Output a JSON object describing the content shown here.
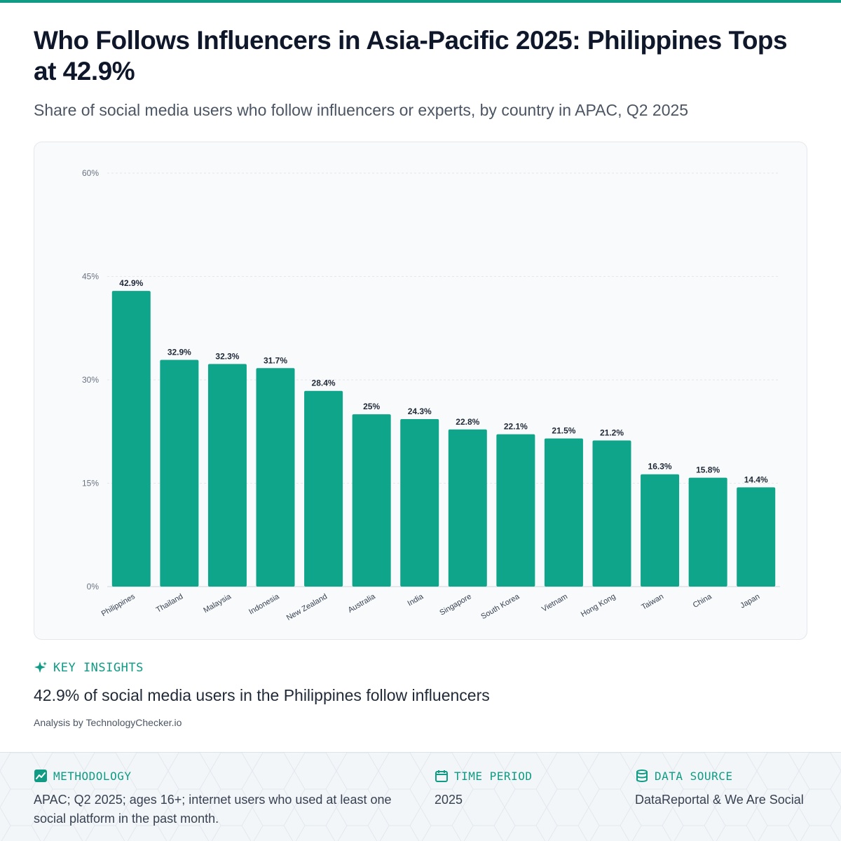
{
  "header": {
    "title": "Who Follows Influencers in Asia-Pacific 2025: Philippines Tops at 42.9%",
    "subtitle": "Share of social media users who follow influencers or experts, by country in APAC, Q2 2025"
  },
  "chart_data": {
    "type": "bar",
    "title": "Who Follows Influencers in Asia-Pacific 2025: Philippines Tops at 42.9%",
    "subtitle": "Share of social media users who follow influencers or experts, by country in APAC, Q2 2025",
    "categories": [
      "Philippines",
      "Thailand",
      "Malaysia",
      "Indonesia",
      "New Zealand",
      "Australia",
      "India",
      "Singapore",
      "South Korea",
      "Vietnam",
      "Hong Kong",
      "Taiwan",
      "China",
      "Japan"
    ],
    "values": [
      42.9,
      32.9,
      32.3,
      31.7,
      28.4,
      25,
      24.3,
      22.8,
      22.1,
      21.5,
      21.2,
      16.3,
      15.8,
      14.4
    ],
    "value_labels": [
      "42.9%",
      "32.9%",
      "32.3%",
      "31.7%",
      "28.4%",
      "25%",
      "24.3%",
      "22.8%",
      "22.1%",
      "21.5%",
      "21.2%",
      "16.3%",
      "15.8%",
      "14.4%"
    ],
    "yticks": [
      0,
      15,
      30,
      45,
      60
    ],
    "ytick_labels": [
      "0%",
      "15%",
      "30%",
      "45%",
      "60%"
    ],
    "ylim": [
      0,
      60
    ],
    "xlabel": "",
    "ylabel": "",
    "grid": true,
    "bar_color": "#0ea58a"
  },
  "insights": {
    "heading": "KEY INSIGHTS",
    "text": "42.9% of social media users in the Philippines follow influencers",
    "analysis": "Analysis by TechnologyChecker.io"
  },
  "footer": {
    "methodology": {
      "label": "METHODOLOGY",
      "icon": "chart-line-icon",
      "text": "APAC; Q2 2025; ages 16+; internet users who used at least one social platform in the past month."
    },
    "time_period": {
      "label": "TIME PERIOD",
      "icon": "calendar-icon",
      "text": "2025"
    },
    "data_source": {
      "label": "DATA SOURCE",
      "icon": "database-icon",
      "text": "DataReportal & We Are Social"
    }
  },
  "colors": {
    "accent": "#0f9b84",
    "bar": "#0ea58a"
  }
}
